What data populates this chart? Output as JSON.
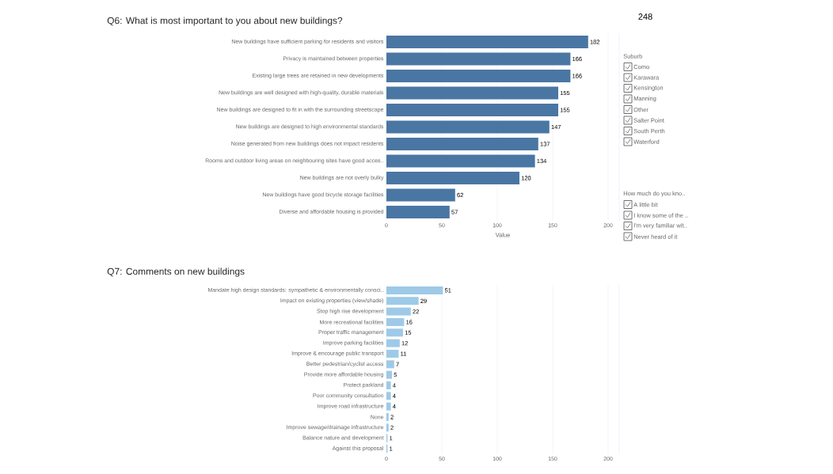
{
  "chart_data": [
    {
      "type": "bar",
      "orientation": "horizontal",
      "title": "Q6: What is most important to you about new buildings?",
      "xlabel": "Value",
      "categories": [
        "New buildings have sufficient parking for residents and visitors",
        "Privacy is maintained between properties",
        "Existing large trees are retained in new developments",
        "New buildings are well designed with high-quality, durable materials",
        "New buildings are designed to fit in with the surrounding streetscape",
        "New buildings are designed to high environmental standards",
        "Noise generated from new buildings does not impact residents",
        "Rooms and outdoor living areas on neighbouring sites have good acces..",
        "New buildings are not overly bulky",
        "New buildings have good bicycle storage facilities",
        "Diverse and affordable housing is provided"
      ],
      "values": [
        182,
        166,
        166,
        155,
        155,
        147,
        137,
        134,
        120,
        62,
        57
      ],
      "color": "#4a76a4",
      "xlim": [
        0,
        210
      ],
      "xticks": [
        0,
        50,
        100,
        150,
        200
      ],
      "grid": "x",
      "data_labels": true,
      "annotations": [
        "248"
      ]
    },
    {
      "type": "bar",
      "orientation": "horizontal",
      "title": "Q7: Comments on new buildings",
      "categories": [
        "Mandate high design standards: sympathetic & environmentally consci..",
        "Impact on existing properties (view/shade)",
        "Stop high rise development",
        "More recreational facilities",
        "Proper traffic management",
        "Improve parking facilities",
        "Improve & encourage public transport",
        "Better pedestrian/cyclist access",
        "Provide more affordable housing",
        "Protect parkland",
        "Poor community consultation",
        "Improve road infrastructure",
        "None",
        "Improve sewage/drainage infrastructure",
        "Balance nature and development",
        "Against this proposal"
      ],
      "values": [
        51,
        29,
        22,
        16,
        15,
        12,
        11,
        7,
        5,
        4,
        4,
        4,
        2,
        2,
        1,
        1
      ],
      "color": "#9ecae8",
      "xlim": [
        0,
        210
      ],
      "xticks": [
        0,
        50,
        100,
        150,
        200
      ],
      "grid": "x",
      "data_labels": true
    },
    {
      "type": "other",
      "title": "Suburb",
      "annotations": [
        "Como",
        "Karawara",
        "Kensington",
        "Manning",
        "Other",
        "Salter Point",
        "South Perth",
        "Waterford"
      ]
    },
    {
      "type": "other",
      "title": "How much do you kno..",
      "annotations": [
        "A little bit",
        "I know some of the ..",
        "I'm very familiar wit..",
        "Never heard of it"
      ]
    }
  ]
}
